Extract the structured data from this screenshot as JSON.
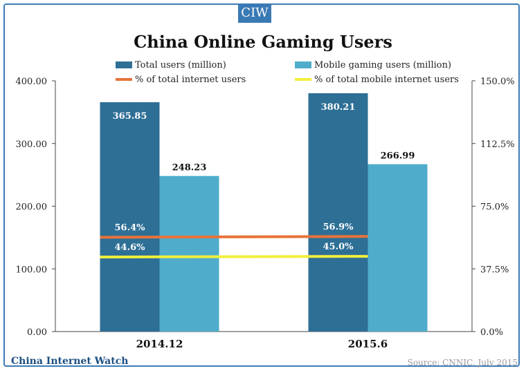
{
  "badge": "CIW",
  "brand": "China Internet Watch",
  "source": "Source: CNNIC, July 2015",
  "colors": {
    "total": "#2e6f96",
    "mobile": "#4fadcb",
    "pct_total": "#e8733a",
    "pct_mobile": "#f2ef3c",
    "frame": "#3b7bb6"
  },
  "chart_data": {
    "type": "bar",
    "title": "China Online Gaming Users",
    "categories": [
      "2014.12",
      "2015.6"
    ],
    "series": [
      {
        "name": "Total users (million)",
        "kind": "bar",
        "axis": "left",
        "values": [
          365.85,
          380.21
        ],
        "labels": [
          "365.85",
          "380.21"
        ]
      },
      {
        "name": "Mobile gaming users (million)",
        "kind": "bar",
        "axis": "left",
        "values": [
          248.23,
          266.99
        ],
        "labels": [
          "248.23",
          "266.99"
        ]
      },
      {
        "name": "% of total internet users",
        "kind": "line",
        "axis": "right",
        "values": [
          56.4,
          56.9
        ],
        "labels": [
          "56.4%",
          "56.9%"
        ]
      },
      {
        "name": "% of total mobile internet users",
        "kind": "line",
        "axis": "right",
        "values": [
          44.6,
          45.0
        ],
        "labels": [
          "44.6%",
          "45.0%"
        ]
      }
    ],
    "ylim_left": [
      0,
      400
    ],
    "ylim_right": [
      0,
      150
    ],
    "yticks_left": [
      "0.00",
      "100.00",
      "200.00",
      "300.00",
      "400.00"
    ],
    "yticks_right": [
      "0.0%",
      "37.5%",
      "75.0%",
      "112.5%",
      "150.0%"
    ],
    "legend_position": "top"
  }
}
